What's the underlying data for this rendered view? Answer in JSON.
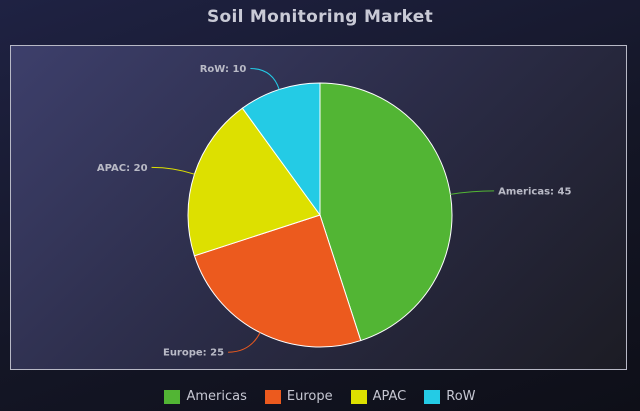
{
  "chart_data": {
    "type": "pie",
    "title": "Soil Monitoring Market",
    "categories": [
      "Americas",
      "Europe",
      "APAC",
      "RoW"
    ],
    "values": [
      45,
      25,
      20,
      10
    ],
    "colors": [
      "#52b534",
      "#ec5a1e",
      "#dde000",
      "#24cbe5"
    ],
    "data_labels": [
      "Americas: 45",
      "Europe: 25",
      "APAC: 20",
      "RoW: 10"
    ],
    "legend_position": "bottom"
  }
}
